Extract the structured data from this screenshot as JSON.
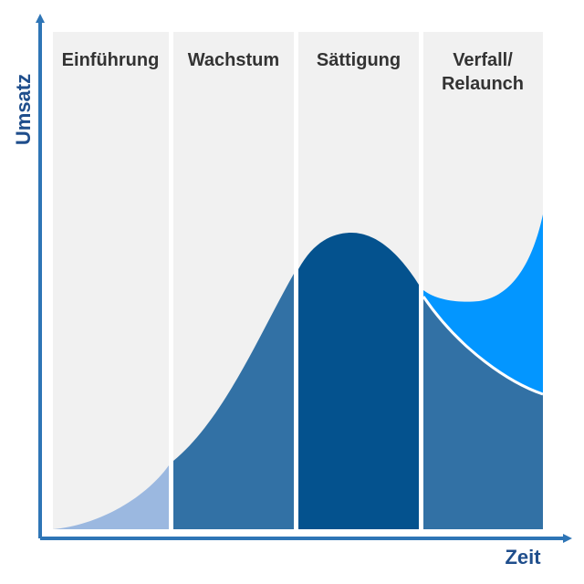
{
  "diagram": {
    "phases": [
      {
        "label_lines": [
          "Einführung"
        ]
      },
      {
        "label_lines": [
          "Wachstum"
        ]
      },
      {
        "label_lines": [
          "Sättigung"
        ]
      },
      {
        "label_lines": [
          "Verfall/",
          "Relaunch"
        ]
      }
    ],
    "y_axis_label": "Umsatz",
    "x_axis_label": "Zeit",
    "colors": {
      "panel_bg": "#f1f1f1",
      "intro_fill": "#9bb8e0",
      "growth_fill": "#3271a5",
      "saturation_fill": "#04528e",
      "decline_fill": "#3271a5",
      "relaunch_fill": "#0396ff",
      "axis": "#2e75b6",
      "label_text": "#333333",
      "axis_text": "#1f4e8c"
    }
  }
}
